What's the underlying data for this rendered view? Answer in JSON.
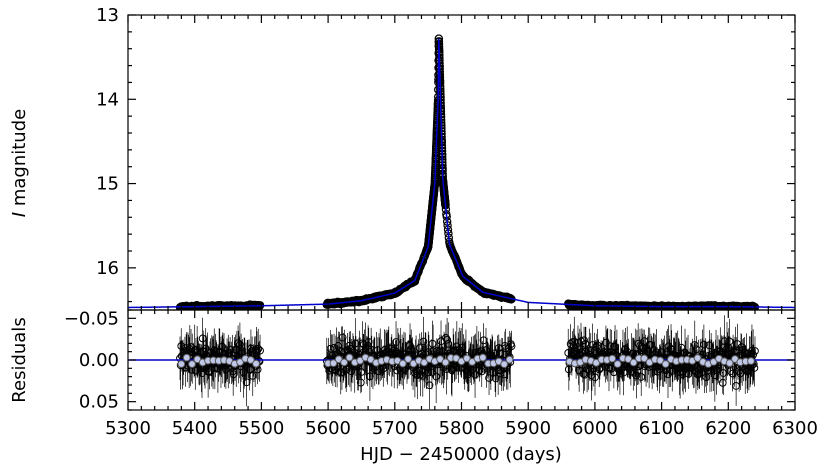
{
  "chart_data": [
    {
      "type": "scatter",
      "panel": "light curve",
      "title": "",
      "ylabel_italic": "I",
      "ylabel_rest": " magnitude",
      "xlim": [
        5300,
        6300
      ],
      "ylim": [
        16.5,
        13.0
      ],
      "y_inverted": true,
      "xticks": [
        5300,
        5400,
        5500,
        5600,
        5700,
        5800,
        5900,
        6000,
        6100,
        6200,
        6300
      ],
      "yticks": [
        13,
        14,
        15,
        16
      ],
      "ytick_labels": [
        "13",
        "14",
        "15",
        "16"
      ],
      "series": [
        {
          "kind": "observations",
          "marker": "open-circle",
          "color": "#000000",
          "segments": [
            {
              "x_start": 5378,
              "x_end": 5498,
              "baseline_mag": 16.45
            },
            {
              "x_start": 5598,
              "x_end": 5875,
              "baseline_mag": 16.44,
              "peak_x": 5766,
              "peak_mag": 13.28
            },
            {
              "x_start": 5960,
              "x_end": 6240,
              "baseline_mag": 16.45
            }
          ]
        },
        {
          "kind": "model",
          "color": "#0000cc",
          "x": [
            5300,
            5400,
            5500,
            5600,
            5650,
            5700,
            5730,
            5750,
            5760,
            5765,
            5766,
            5767,
            5772,
            5782,
            5802,
            5832,
            5900,
            6000,
            6100,
            6200,
            6300
          ],
          "y": [
            16.47,
            16.46,
            16.45,
            16.43,
            16.39,
            16.3,
            16.15,
            15.75,
            15.0,
            14.0,
            13.28,
            13.55,
            14.95,
            15.72,
            16.1,
            16.29,
            16.41,
            16.45,
            16.46,
            16.46,
            16.47
          ]
        }
      ]
    },
    {
      "type": "scatter",
      "panel": "residuals",
      "ylabel": "Residuals",
      "xlabel": "HJD − 2450000 (days)",
      "xlim": [
        5300,
        6300
      ],
      "ylim": [
        0.06,
        -0.06
      ],
      "y_inverted": true,
      "xticks": [
        5300,
        5400,
        5500,
        5600,
        5700,
        5800,
        5900,
        6000,
        6100,
        6200,
        6300
      ],
      "xtick_labels": [
        "5300",
        "5400",
        "5500",
        "5600",
        "5700",
        "5800",
        "5900",
        "6000",
        "6100",
        "6200",
        "6300"
      ],
      "yticks": [
        -0.05,
        0.0,
        0.05
      ],
      "ytick_labels": [
        "−0.05",
        "0.00",
        "0.05"
      ],
      "zero_line_color": "#0000cc",
      "binned_color": "#c0c8e8",
      "segments": [
        {
          "x_start": 5378,
          "x_end": 5498
        },
        {
          "x_start": 5598,
          "x_end": 5875
        },
        {
          "x_start": 5960,
          "x_end": 6240
        }
      ]
    }
  ]
}
